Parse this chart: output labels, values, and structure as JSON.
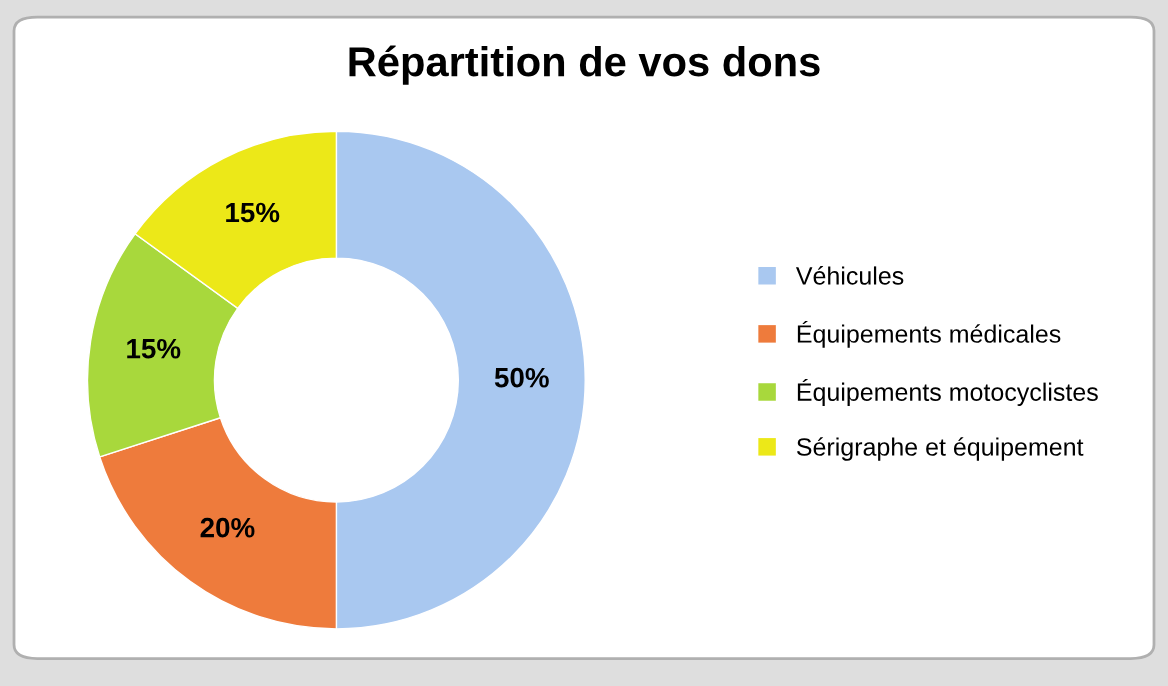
{
  "chart_data": {
    "type": "donut",
    "title": "Répartition de vos dons",
    "categories": [
      "Véhicules",
      "Équipements médicales",
      "Équipements motocyclistes",
      "Sérigraphe et équipement"
    ],
    "values": [
      50,
      20,
      15,
      15
    ],
    "colors": [
      "#a9c8f0",
      "#ee7b3c",
      "#a8d83c",
      "#ece818"
    ],
    "value_labels": [
      "50%",
      "20%",
      "15%",
      "15%"
    ],
    "legend": "right"
  }
}
